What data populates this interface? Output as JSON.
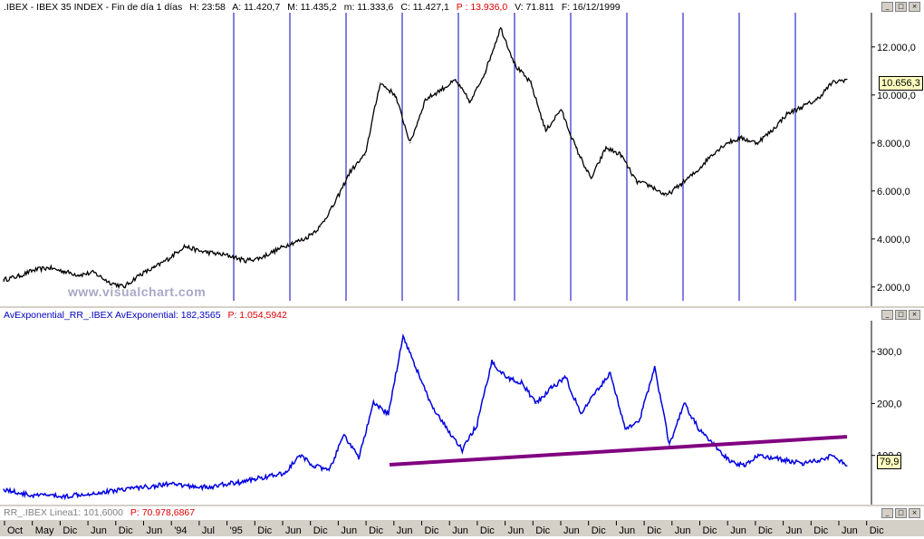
{
  "colors": {
    "price_line": "#000000",
    "osc_line": "#0000e0",
    "cycle_lines": "#0000c0",
    "trendline": "#800080",
    "highlight": "#e00000",
    "readout_bg": "#ffffc0"
  },
  "window_buttons": [
    "_",
    "□",
    "×"
  ],
  "top_panel": {
    "header": {
      "symbol": ".IBEX - IBEX 35 INDEX - Fin de día 1 días",
      "hour": "H: 23:58",
      "open": "A: 11.420,7",
      "high": "M: 11.435,2",
      "low": "m: 11.333,6",
      "close": "C: 11.427,1",
      "price": "P : 13.936,0",
      "volume": "V: 71.811",
      "date": "F: 16/12/1999"
    },
    "watermark": "www.visualchart.com",
    "last_value": "10.656,3"
  },
  "bottom_panel": {
    "header": {
      "indicator": "AvExponential_RR_.IBEX AvExponential: 182,3565",
      "price": "P: 1.054,5942"
    },
    "last_value": "79,9"
  },
  "trend_panel": {
    "header": {
      "line": "RR_.IBEX Linea1: 101,6000",
      "price": "P: 70.978,6867"
    }
  },
  "chart_data": [
    {
      "type": "line",
      "title": "",
      "series": [
        {
          "values": [
            2300,
            2450,
            2700,
            2800,
            2650,
            2500,
            2600,
            2200,
            2000,
            2500,
            2800,
            3200,
            3700,
            3500,
            3400,
            3300,
            3100,
            3200,
            3500,
            3800,
            4000,
            4500,
            5500,
            6800,
            7500,
            10500,
            10000,
            8000,
            9800,
            10200,
            10600,
            9700,
            11000,
            12800,
            11200,
            10500,
            8500,
            9400,
            7800,
            6500,
            7800,
            7500,
            6400,
            6200,
            5800,
            6300,
            6800,
            7500,
            8000,
            8200,
            8000,
            8500,
            9200,
            9500,
            9800,
            10500,
            10656
          ]
        }
      ],
      "ylim": [
        1200,
        13200
      ],
      "yticks": [
        "2.000,0",
        "4.000,0",
        "6.000,0",
        "8.000,0",
        "10.000,0",
        "12.000,0"
      ],
      "ytick_values": [
        2000,
        4000,
        6000,
        8000,
        10000,
        12000
      ]
    },
    {
      "type": "line",
      "title": "",
      "series": [
        {
          "values": [
            35,
            28,
            22,
            24,
            20,
            25,
            27,
            30,
            35,
            38,
            40,
            45,
            42,
            40,
            38,
            45,
            48,
            55,
            60,
            65,
            100,
            80,
            70,
            140,
            95,
            200,
            180,
            330,
            260,
            190,
            150,
            110,
            160,
            280,
            250,
            240,
            200,
            230,
            250,
            180,
            220,
            260,
            150,
            170,
            270,
            120,
            200,
            150,
            120,
            90,
            80,
            100,
            95,
            90,
            85,
            90,
            100,
            79.9
          ]
        }
      ],
      "trendline": {
        "start": 82,
        "end": 136
      },
      "ylim": [
        0,
        370
      ],
      "yticks": [
        "100,0",
        "200,0",
        "300,0"
      ],
      "ytick_values": [
        100,
        200,
        300
      ]
    }
  ],
  "x_axis": {
    "labels": [
      "Oct",
      "May",
      "Dic",
      "Jun",
      "Dic",
      "Jun",
      "'94",
      "Jul",
      "'95",
      "Dic",
      "Jun",
      "Dic",
      "Jun",
      "Dic",
      "Jun",
      "Dic",
      "Jun",
      "Dic",
      "Jun",
      "Dic",
      "Jun",
      "Dic",
      "Jun",
      "Dic",
      "Jun",
      "Dic",
      "Jun",
      "Dic",
      "Jun",
      "Dic",
      "Jun",
      "Dic"
    ]
  }
}
